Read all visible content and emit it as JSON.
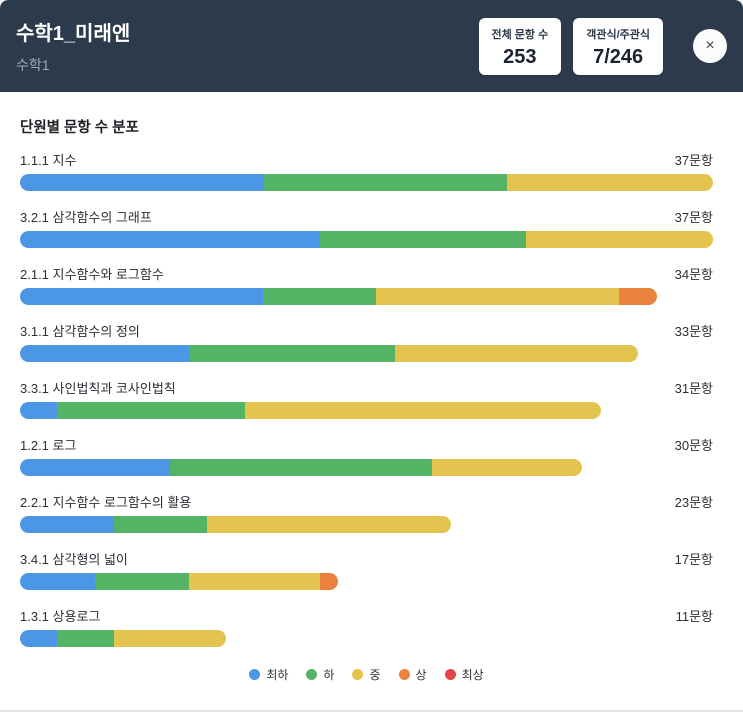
{
  "header": {
    "title": "수학1_미래엔",
    "subtitle": "수학1",
    "stats": [
      {
        "label": "전체 문항 수",
        "value": "253"
      },
      {
        "label": "객관식/주관식",
        "value": "7/246"
      }
    ],
    "close_icon": "×"
  },
  "colors": {
    "header_bg": "#2d3a4b",
    "lowest_blue": "#4b96e5",
    "low_green": "#55b366",
    "medium_yellow": "#e3c44f",
    "high_orange": "#e8823d",
    "highest_red": "#e14545"
  },
  "chart_data": {
    "type": "bar",
    "orientation": "horizontal",
    "stacked": true,
    "title": "단원별 문항 수 분포",
    "total_suffix": "문항",
    "xmax": 37,
    "categories": [
      "1.1.1 지수",
      "3.2.1 삼각함수의 그래프",
      "2.1.1 지수함수와 로그함수",
      "3.1.1 삼각함수의 정의",
      "3.3.1 사인법칙과 코사인법칙",
      "1.2.1 로그",
      "2.2.1 지수함수 로그함수의 활용",
      "3.4.1 삼각형의 넓이",
      "1.3.1 상용로그"
    ],
    "totals": [
      37,
      37,
      34,
      33,
      31,
      30,
      23,
      17,
      11
    ],
    "series": [
      {
        "name": "최하",
        "key": "lowest",
        "color": "#4b96e5",
        "values": [
          13,
          16,
          13,
          9,
          2,
          8,
          5,
          4,
          2
        ]
      },
      {
        "name": "하",
        "key": "low",
        "color": "#55b366",
        "values": [
          13,
          11,
          6,
          11,
          10,
          14,
          5,
          5,
          3
        ]
      },
      {
        "name": "중",
        "key": "medium",
        "color": "#e3c44f",
        "values": [
          11,
          10,
          13,
          13,
          19,
          8,
          13,
          7,
          6
        ]
      },
      {
        "name": "상",
        "key": "high",
        "color": "#e8823d",
        "values": [
          0,
          0,
          2,
          0,
          0,
          0,
          0,
          1,
          0
        ]
      },
      {
        "name": "최상",
        "key": "highest",
        "color": "#e14545",
        "values": [
          0,
          0,
          0,
          0,
          0,
          0,
          0,
          0,
          0
        ]
      }
    ],
    "legend_position": "bottom-center",
    "grid": false
  }
}
